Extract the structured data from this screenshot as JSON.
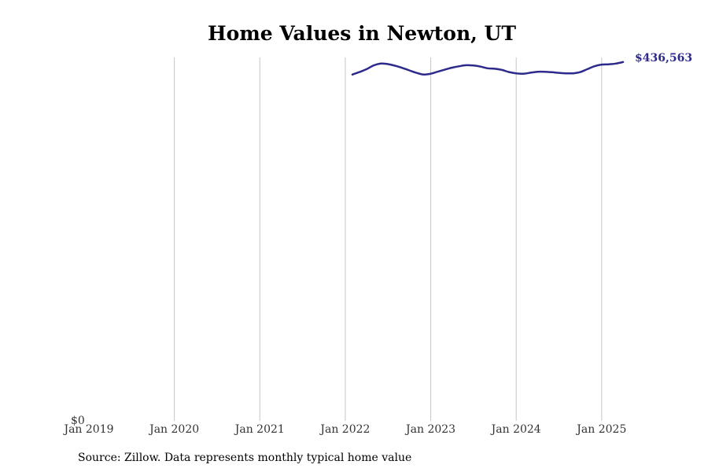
{
  "chart_data": {
    "type": "line",
    "title": "Home Values in Newton, UT",
    "source": "Source: Zillow. Data represents monthly typical home value",
    "x_ticks": [
      "Jan 2019",
      "Jan 2020",
      "Jan 2021",
      "Jan 2022",
      "Jan 2023",
      "Jan 2024",
      "Jan 2025"
    ],
    "y_tick_label": "$0",
    "xlim": [
      "2019-01",
      "2025-04"
    ],
    "ylim": [
      0,
      436563
    ],
    "grid": "vertical",
    "line_color": "#2e2a8c",
    "end_label": "$436,563",
    "series": [
      {
        "x": [
          "2022-02",
          "2022-03",
          "2022-04",
          "2022-05",
          "2022-06",
          "2022-07",
          "2022-08",
          "2022-09",
          "2022-10",
          "2022-11",
          "2022-12",
          "2023-01",
          "2023-02",
          "2023-03",
          "2023-04",
          "2023-05",
          "2023-06",
          "2023-07",
          "2023-08",
          "2023-09",
          "2023-10",
          "2023-11",
          "2023-12",
          "2024-01",
          "2024-02",
          "2024-03",
          "2024-04",
          "2024-05",
          "2024-06",
          "2024-07",
          "2024-08",
          "2024-09",
          "2024-10",
          "2024-11",
          "2024-12",
          "2025-01",
          "2025-02",
          "2025-03",
          "2025-04"
        ],
        "values": [
          416000,
          419000,
          422500,
          427000,
          429200,
          428500,
          426500,
          424000,
          421000,
          418000,
          416000,
          417000,
          419500,
          422000,
          424300,
          426000,
          427200,
          426800,
          425500,
          423500,
          423000,
          421500,
          419000,
          417500,
          417000,
          418200,
          419400,
          419400,
          418800,
          418000,
          417500,
          417500,
          419000,
          422500,
          426000,
          428000,
          428300,
          429200,
          431000
        ]
      }
    ]
  }
}
